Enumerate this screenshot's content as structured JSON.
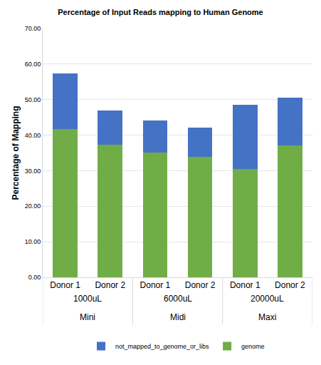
{
  "chart_data": {
    "type": "bar",
    "title": "Percentage of Input Reads mapping to Human Genome",
    "y_label": "Percentage of Mapping",
    "categories": [
      [
        "Donor 1",
        "1000uL",
        "Mini"
      ],
      [
        "Donor 2",
        "1000uL",
        "Mini"
      ],
      [
        "Donor 1",
        "6000uL",
        "Midi"
      ],
      [
        "Donor 2",
        "6000uL",
        "Midi"
      ],
      [
        "Donor 1",
        "20000uL",
        "Maxi"
      ],
      [
        "Donor 2",
        "20000uL",
        "Maxi"
      ]
    ],
    "series": [
      {
        "name": "genome",
        "color": "#70ad47",
        "values": [
          41.7,
          37.4,
          35.2,
          33.9,
          30.5,
          37.1
        ]
      },
      {
        "name": "not_mapped_to_genome_or_libs",
        "color": "#4472c4",
        "values": [
          15.6,
          9.6,
          9.0,
          8.2,
          18.0,
          13.5
        ]
      }
    ],
    "stacked": true,
    "ylim": [
      0,
      70
    ],
    "yticks": [
      {
        "value": 0,
        "label": "0.00"
      },
      {
        "value": 10,
        "label": "10.00"
      },
      {
        "value": 20,
        "label": "20.00"
      },
      {
        "value": 30,
        "label": "30.00"
      },
      {
        "value": 40,
        "label": "40.00"
      },
      {
        "value": 50,
        "label": "50.00"
      },
      {
        "value": 60,
        "label": "60.00"
      },
      {
        "value": 70,
        "label": "70.00"
      }
    ],
    "grid": true,
    "legend": "bottom"
  }
}
